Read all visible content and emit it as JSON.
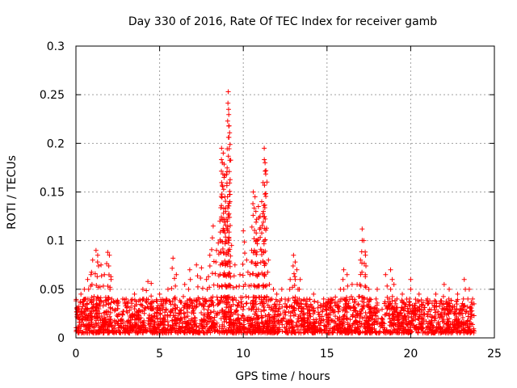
{
  "colors": {
    "series": "#ff0000",
    "grid": "#a0a0a0",
    "axis": "#000000",
    "background": "#ffffff"
  },
  "chart_data": {
    "type": "scatter",
    "title": "Day 330 of 2016, Rate Of TEC Index for receiver gamb",
    "xlabel": "GPS time / hours",
    "ylabel": "ROTI / TECUs",
    "xlim": [
      0,
      25
    ],
    "ylim": [
      0,
      0.3
    ],
    "xticks": [
      0,
      5,
      10,
      15,
      20,
      25
    ],
    "yticks": [
      0,
      0.05,
      0.1,
      0.15,
      0.2,
      0.25,
      0.3
    ],
    "xtick_labels": [
      "0",
      "5",
      "10",
      "15",
      "20",
      "25"
    ],
    "ytick_labels": [
      "0",
      "0.05",
      "0.1",
      "0.15",
      "0.2",
      "0.25",
      "0.3"
    ],
    "grid": true,
    "marker": "plus",
    "series": [
      {
        "name": "ROTI",
        "background_band": {
          "x_range": [
            0,
            23.8
          ],
          "typical_range": [
            0.005,
            0.04
          ],
          "points_per_hour": 110
        },
        "points": [
          [
            0.1,
            0.03
          ],
          [
            0.3,
            0.045
          ],
          [
            0.5,
            0.05
          ],
          [
            0.7,
            0.06
          ],
          [
            0.9,
            0.065
          ],
          [
            1.0,
            0.08
          ],
          [
            1.2,
            0.09
          ],
          [
            1.3,
            0.085
          ],
          [
            1.5,
            0.075
          ],
          [
            1.7,
            0.065
          ],
          [
            1.9,
            0.088
          ],
          [
            2.0,
            0.085
          ],
          [
            2.1,
            0.06
          ],
          [
            2.5,
            0.03
          ],
          [
            3.0,
            0.04
          ],
          [
            3.5,
            0.045
          ],
          [
            4.0,
            0.05
          ],
          [
            4.3,
            0.058
          ],
          [
            4.5,
            0.056
          ],
          [
            5.0,
            0.045
          ],
          [
            5.5,
            0.05
          ],
          [
            5.8,
            0.082
          ],
          [
            6.0,
            0.065
          ],
          [
            6.5,
            0.055
          ],
          [
            6.8,
            0.07
          ],
          [
            7.2,
            0.075
          ],
          [
            7.5,
            0.072
          ],
          [
            7.8,
            0.06
          ],
          [
            8.0,
            0.085
          ],
          [
            8.2,
            0.115
          ],
          [
            8.4,
            0.09
          ],
          [
            8.6,
            0.12
          ],
          [
            8.7,
            0.195
          ],
          [
            8.75,
            0.18
          ],
          [
            8.8,
            0.19
          ],
          [
            8.85,
            0.165
          ],
          [
            8.9,
            0.145
          ],
          [
            8.95,
            0.13
          ],
          [
            9.0,
            0.168
          ],
          [
            9.05,
            0.12
          ],
          [
            9.1,
            0.253
          ],
          [
            9.12,
            0.235
          ],
          [
            9.15,
            0.218
          ],
          [
            9.2,
            0.14
          ],
          [
            9.3,
            0.095
          ],
          [
            9.5,
            0.075
          ],
          [
            9.8,
            0.065
          ],
          [
            10.0,
            0.11
          ],
          [
            10.2,
            0.08
          ],
          [
            10.4,
            0.065
          ],
          [
            10.5,
            0.09
          ],
          [
            10.6,
            0.15
          ],
          [
            10.7,
            0.145
          ],
          [
            10.75,
            0.13
          ],
          [
            10.8,
            0.1
          ],
          [
            10.9,
            0.135
          ],
          [
            11.0,
            0.125
          ],
          [
            11.1,
            0.14
          ],
          [
            11.2,
            0.13
          ],
          [
            11.25,
            0.195
          ],
          [
            11.3,
            0.18
          ],
          [
            11.35,
            0.172
          ],
          [
            11.5,
            0.08
          ],
          [
            11.8,
            0.05
          ],
          [
            12.0,
            0.045
          ],
          [
            12.3,
            0.05
          ],
          [
            12.5,
            0.035
          ],
          [
            12.8,
            0.06
          ],
          [
            13.0,
            0.085
          ],
          [
            13.1,
            0.078
          ],
          [
            13.2,
            0.07
          ],
          [
            13.4,
            0.06
          ],
          [
            13.8,
            0.04
          ],
          [
            14.2,
            0.045
          ],
          [
            14.8,
            0.04
          ],
          [
            15.2,
            0.04
          ],
          [
            15.5,
            0.042
          ],
          [
            15.8,
            0.05
          ],
          [
            16.0,
            0.07
          ],
          [
            16.2,
            0.065
          ],
          [
            16.5,
            0.055
          ],
          [
            16.8,
            0.055
          ],
          [
            17.0,
            0.08
          ],
          [
            17.1,
            0.112
          ],
          [
            17.2,
            0.1
          ],
          [
            17.3,
            0.085
          ],
          [
            17.5,
            0.05
          ],
          [
            18.0,
            0.05
          ],
          [
            18.5,
            0.065
          ],
          [
            18.8,
            0.07
          ],
          [
            19.0,
            0.055
          ],
          [
            19.5,
            0.045
          ],
          [
            20.0,
            0.06
          ],
          [
            20.5,
            0.045
          ],
          [
            21.0,
            0.04
          ],
          [
            21.5,
            0.045
          ],
          [
            22.0,
            0.055
          ],
          [
            22.3,
            0.05
          ],
          [
            22.8,
            0.045
          ],
          [
            23.2,
            0.06
          ],
          [
            23.5,
            0.05
          ],
          [
            23.7,
            0.04
          ]
        ]
      }
    ]
  }
}
